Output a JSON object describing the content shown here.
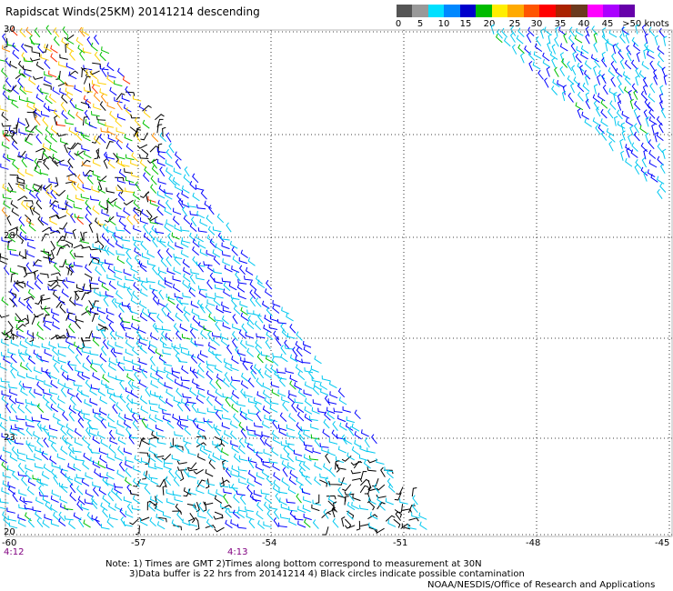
{
  "title": "Rapidscat Winds(25KM) 20141214 descending",
  "colorbar": {
    "colors": [
      "#555555",
      "#999999",
      "#00e0ff",
      "#0088ff",
      "#0000cc",
      "#00bb00",
      "#ffee00",
      "#ffaa00",
      "#ff5500",
      "#ff0000",
      "#aa2200",
      "#6b3a1e",
      "#ff00ff",
      "#aa00ff",
      "#6600aa"
    ],
    "labels": [
      "0",
      "5",
      "10",
      "15",
      "20",
      "25",
      "30",
      "35",
      "40",
      "45",
      ">50 knots"
    ]
  },
  "axes": {
    "lat_labels": [
      "30",
      "29",
      "28",
      "24",
      "23",
      "20"
    ],
    "lon_labels": [
      "-60",
      "-57",
      "-54",
      "-51",
      "-48",
      "-45"
    ],
    "time_labels": [
      "4:12",
      "4:13"
    ]
  },
  "wind_bands": [
    "#000000",
    "#00c000",
    "#0000ff",
    "#00c8f0",
    "#ffd000",
    "#ff8c00",
    "#ff3000"
  ],
  "notes": [
    "Note: 1) Times are GMT 2)Times along bottom correspond to measurement at 30N",
    "3)Data buffer is 22 hrs from 20141214 4) Black circles indicate possible contamination"
  ],
  "credit": "NOAA/NESDIS/Office of Research and Applications"
}
